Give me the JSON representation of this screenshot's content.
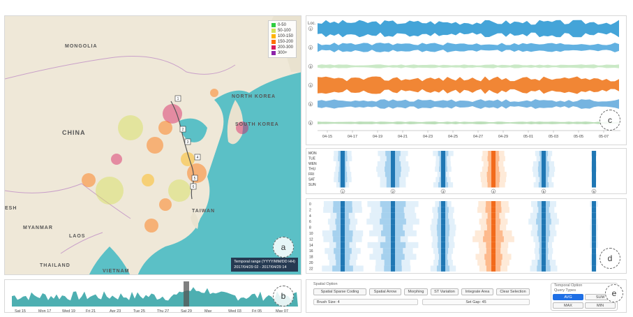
{
  "map": {
    "country_labels": [
      "MONGOLIA",
      "CHINA",
      "NORTH KOREA",
      "SOUTH KOREA",
      "TAIWAN",
      "MYANMAR",
      "LAOS",
      "THAILAND",
      "VIETNAM",
      "ESH"
    ],
    "legend": [
      "0-50",
      "50-100",
      "100-150",
      "150-200",
      "200-300",
      "300+"
    ],
    "legend_colors": [
      "#2ecc40",
      "#d4e157",
      "#ffb300",
      "#ff6f00",
      "#d81b60",
      "#8e24aa"
    ],
    "route_markers": [
      "1",
      "2",
      "3",
      "4",
      "5",
      "6"
    ],
    "temporal_range_title": "Temporal range (YYYY/MM/DD HH)",
    "temporal_range_value": "2017/04/29 02 - 2017/04/29 14",
    "panel_label": "a"
  },
  "timeline": {
    "ticks": [
      "Sat 15",
      "Mon 17",
      "Wed 19",
      "Fri 21",
      "Apr 23",
      "Tue 25",
      "Thu 27",
      "Sat 29",
      "May",
      "Wed 03",
      "Fri 05",
      "May 07"
    ],
    "panel_label": "b"
  },
  "stream": {
    "loc_label": "Loc.",
    "rows": [
      "1",
      "2",
      "3",
      "4",
      "5",
      "6"
    ],
    "row_colors": [
      "#3a9fd6",
      "#5aaddf",
      "#a6dba0",
      "#f07f2a",
      "#6fb0de",
      "#8fc98a"
    ],
    "x_ticks": [
      "04-15",
      "04-17",
      "04-19",
      "04-21",
      "04-23",
      "04-25",
      "04-27",
      "04-29",
      "05-01",
      "05-03",
      "05-05",
      "05-07"
    ],
    "panel_label": "c"
  },
  "weekly": {
    "days": [
      "MON",
      "TUE",
      "WEN",
      "THU",
      "FRI",
      "SAT",
      "SUN"
    ],
    "columns": [
      "1",
      "2",
      "3",
      "4",
      "5",
      "6"
    ]
  },
  "hourly": {
    "hours": [
      "0",
      "2",
      "4",
      "6",
      "8",
      "10",
      "12",
      "14",
      "16",
      "18",
      "20",
      "22"
    ],
    "panel_label": "d"
  },
  "controls": {
    "spatial_title": "Spatial Option",
    "spatial_buttons": [
      "Spatial Sparse Coding",
      "Spatial Arrow",
      "Morphing",
      "ST Variation",
      "Integrate Area",
      "Clear Selection"
    ],
    "brush_size": "Brush Size: 4",
    "set_gap": "Set Gap: 45",
    "temporal_title": "Temporal Option",
    "query_types_title": "Query Types",
    "query_buttons": [
      "AVG",
      "SUM",
      "MAX",
      "MIN"
    ],
    "panel_label": "e"
  }
}
